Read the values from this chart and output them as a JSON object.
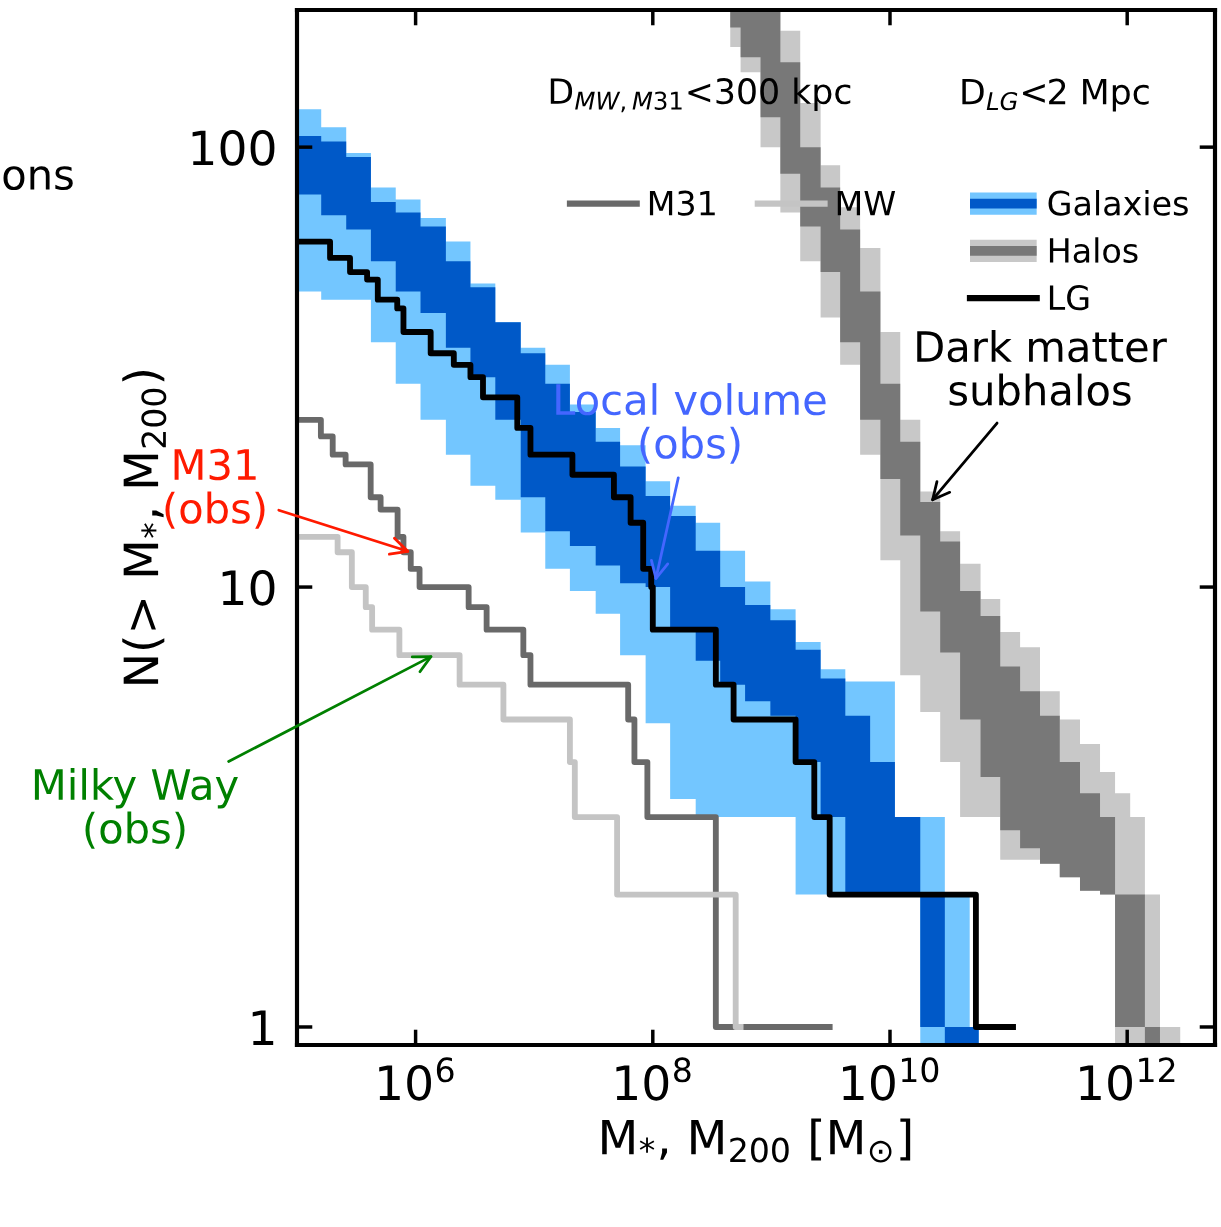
{
  "chart_data": {
    "type": "step",
    "xlabel": "M$_{*}$, M$_{200}$ [M$_{⊙}$]",
    "ylabel": "N(> M$_{*}$, M$_{200}$)",
    "log": "xy",
    "xlim": [
      100000.0,
      5500000000000.0
    ],
    "ylim": [
      0.91,
      205
    ],
    "xticks": [
      {
        "value": 1000000.0,
        "label": "10$^{6}$"
      },
      {
        "value": 100000000.0,
        "label": "10$^{8}$"
      },
      {
        "value": 10000000000.0,
        "label": "10$^{10}$"
      },
      {
        "value": 1000000000000.0,
        "label": "10$^{12}$"
      }
    ],
    "yticks": [
      1,
      10,
      100
    ],
    "grid": false,
    "legend": "top right",
    "line_style": "solid",
    "series": [
      {
        "color": "#73c6ff",
        "x": [
          100000.0,
          160000.0,
          260000.0,
          420000.0,
          680000.0,
          1100000.0,
          1800000.0,
          2900000.0,
          4700000.0,
          7700000.0,
          12400000.0,
          20000000.0,
          33000000.0,
          53000000.0,
          87000000.0,
          140000000.0,
          230000000.0,
          370000000.0,
          600000000.0,
          980000000.0,
          1600000000.0,
          2600000000.0,
          4200000000.0,
          6800000000.0,
          11000000000.0,
          18000000000.0,
          29000000000.0,
          47000000000.0,
          56000000000.0
        ],
        "values": [
          null,
          null,
          null,
          null,
          null,
          null,
          null,
          null,
          null,
          null,
          null,
          null,
          null,
          null,
          null,
          null,
          null,
          null,
          null,
          null,
          null,
          null,
          null,
          null,
          null,
          null,
          null,
          null,
          null
        ],
        "upper": [
          122,
          111,
          97,
          81,
          76,
          69,
          61,
          49,
          40,
          35,
          32,
          26,
          23,
          21,
          17.4,
          15.3,
          14,
          12.1,
          10.3,
          8.9,
          7.5,
          6.5,
          6.1,
          6.1,
          3,
          3,
          2,
          1,
          1
        ],
        "lower": [
          47,
          45,
          45,
          36,
          29,
          24,
          20,
          17,
          15.8,
          13.3,
          11,
          9.8,
          8.7,
          7,
          4.9,
          3.3,
          3,
          3,
          3,
          3,
          2,
          2,
          2,
          2,
          2,
          0.91,
          0.91,
          0.91,
          0.91
        ]
      },
      {
        "name": "Galaxies",
        "color": "#0059c8",
        "x": [
          100000.0,
          160000.0,
          260000.0,
          420000.0,
          680000.0,
          1100000.0,
          1800000.0,
          2900000.0,
          4700000.0,
          7700000.0,
          12400000.0,
          20000000.0,
          33000000.0,
          53000000.0,
          87000000.0,
          140000000.0,
          230000000.0,
          370000000.0,
          600000000.0,
          980000000.0,
          1600000000.0,
          2600000000.0,
          4200000000.0,
          6800000000.0,
          11000000000.0,
          18000000000.0,
          29000000000.0,
          47000000000.0,
          56000000000.0
        ],
        "values": [
          null,
          null,
          null,
          null,
          null,
          null,
          null,
          null,
          null,
          null,
          null,
          null,
          null,
          null,
          null,
          null,
          null,
          null,
          null,
          null,
          null,
          null,
          null,
          null,
          null,
          null,
          null,
          null,
          null
        ],
        "upper": [
          106,
          103,
          95,
          75,
          71,
          66,
          55,
          48,
          40,
          34,
          29,
          25,
          21.4,
          18.8,
          16.1,
          14.5,
          12.1,
          10,
          9.1,
          8.4,
          7.2,
          6.2,
          5.1,
          4,
          3,
          2,
          1,
          1,
          1
        ],
        "lower": [
          78,
          70,
          65,
          55,
          47,
          42,
          35,
          30,
          24,
          16,
          13.4,
          12.4,
          11.2,
          10.2,
          10,
          7.9,
          6.8,
          6,
          5.5,
          5.1,
          4,
          3,
          2,
          2,
          2,
          1,
          0.91,
          0.91,
          0.91
        ]
      },
      {
        "color": "#c8c8c8",
        "x": [
          450000000.0,
          550000000.0,
          810000000.0,
          1190000000.0,
          1750000000.0,
          2600000000.0,
          3800000000.0,
          5600000000.0,
          8300000000.0,
          12200000000.0,
          18000000000.0,
          26500000000.0,
          39000000000.0,
          58000000000.0,
          85000000000.0,
          125000000000.0,
          184000000000.0,
          270000000000.0,
          400000000000.0,
          590000000000.0,
          790000000000.0,
          1060000000000.0,
          1410000000000.0,
          1890000000000.0,
          2800000000000.0
        ],
        "values": [
          null,
          null,
          null,
          null,
          null,
          null,
          null,
          null,
          null,
          null,
          null,
          null,
          null,
          null,
          null,
          null,
          null,
          null,
          null,
          null,
          null,
          null,
          null,
          null,
          null
        ],
        "upper": [
          205,
          205,
          205,
          184,
          126,
          91,
          73,
          59,
          38,
          24,
          16.5,
          13.4,
          11.3,
          9.4,
          7.9,
          7.3,
          5.8,
          5,
          4.4,
          3.8,
          3.4,
          3,
          2,
          1,
          1
        ],
        "lower": [
          169,
          148,
          100,
          71,
          55,
          41,
          32,
          20,
          11.5,
          6.3,
          5.2,
          4,
          3,
          3,
          2.4,
          2.4,
          2.35,
          2.19,
          2.04,
          2,
          0.91,
          0.91,
          0.91,
          0.91,
          0.91
        ]
      },
      {
        "name": "Halos",
        "color": "#787878",
        "x": [
          450000000.0,
          550000000.0,
          810000000.0,
          1190000000.0,
          1750000000.0,
          2600000000.0,
          3800000000.0,
          5600000000.0,
          8300000000.0,
          12200000000.0,
          18000000000.0,
          26500000000.0,
          39000000000.0,
          58000000000.0,
          85000000000.0,
          125000000000.0,
          184000000000.0,
          270000000000.0,
          400000000000.0,
          590000000000.0,
          790000000000.0,
          1060000000000.0,
          1410000000000.0,
          1890000000000.0
        ],
        "values": [
          null,
          null,
          null,
          null,
          null,
          null,
          null,
          null,
          null,
          null,
          null,
          null,
          null,
          null,
          null,
          null,
          null,
          null,
          null,
          null,
          null,
          null,
          null,
          null
        ],
        "upper": [
          205,
          205,
          205,
          156,
          100,
          81,
          65,
          47,
          29,
          21.4,
          15.6,
          12.7,
          9.8,
          8.6,
          6.6,
          5.8,
          5.1,
          4,
          3.4,
          3,
          2,
          2,
          1,
          1
        ],
        "lower": [
          187,
          160,
          117,
          87,
          66,
          52,
          36,
          24,
          17.6,
          13.1,
          8.8,
          7.1,
          5,
          3.7,
          2.8,
          2.55,
          2.35,
          2.19,
          2.04,
          2,
          1,
          1,
          0.91,
          0.91
        ]
      },
      {
        "name": "M31",
        "color": "#696969",
        "x": [
          107000.0,
          159000.0,
          200000.0,
          257000.0,
          418000.0,
          507000.0,
          705000.0,
          790000.0,
          910000.0,
          1080000.0,
          2800000.0,
          3970000.0,
          8100000.0,
          9300000.0,
          62000000.0,
          70000000.0,
          90000000.0,
          340000000.0,
          3100000000.0
        ],
        "values": [
          24,
          22,
          20,
          19,
          16,
          15,
          13,
          12,
          11,
          10,
          9,
          8,
          7,
          6,
          5,
          4,
          3,
          1,
          1
        ]
      },
      {
        "name": "MW",
        "color": "#c4c4c4",
        "x": [
          100000.0,
          220000.0,
          290000.0,
          380000.0,
          430000.0,
          730000.0,
          2350000.0,
          5500000.0,
          20000000.0,
          22000000.0,
          50000000.0,
          500000000.0,
          550000000.0
        ],
        "values": [
          13,
          12,
          10,
          9,
          8,
          7,
          6,
          5,
          4,
          3,
          2,
          1,
          1
        ]
      },
      {
        "name": "LG",
        "color": "#000000",
        "x": [
          107000.0,
          190000.0,
          280000.0,
          390000.0,
          480000.0,
          700000.0,
          790000.0,
          1340000.0,
          2100000.0,
          2900000.0,
          3700000.0,
          7200000.0,
          9300000.0,
          21000000.0,
          47000000.0,
          65000000.0,
          83000000.0,
          97000000.0,
          100000000.0,
          340000000.0,
          480000000.0,
          1600000000.0,
          2300000000.0,
          3100000000.0,
          53000000000.0,
          109000000000.0
        ],
        "values": [
          61,
          56,
          52,
          50,
          45,
          43,
          38,
          34,
          32,
          30,
          27,
          23,
          20,
          18,
          16,
          14,
          11,
          10,
          8,
          6,
          5,
          4,
          3,
          2,
          1,
          1
        ]
      }
    ],
    "annotations": [
      "ons",
      "D$_{MW,M31}$<300 kpc",
      "D$_{LG}$<2 Mpc",
      {
        "text": "M31\n(obs)",
        "x": 910000.0,
        "y": 12
      },
      {
        "text": "Milky Way\n(obs)",
        "x": 1420000.0,
        "y": 7
      },
      {
        "text": "Local volume\n(obs)",
        "x": 105000000.0,
        "y": 10.3
      },
      {
        "text": "Dark matter\nsubhalos",
        "x": 22000000000.0,
        "y": 15.6
      }
    ]
  }
}
